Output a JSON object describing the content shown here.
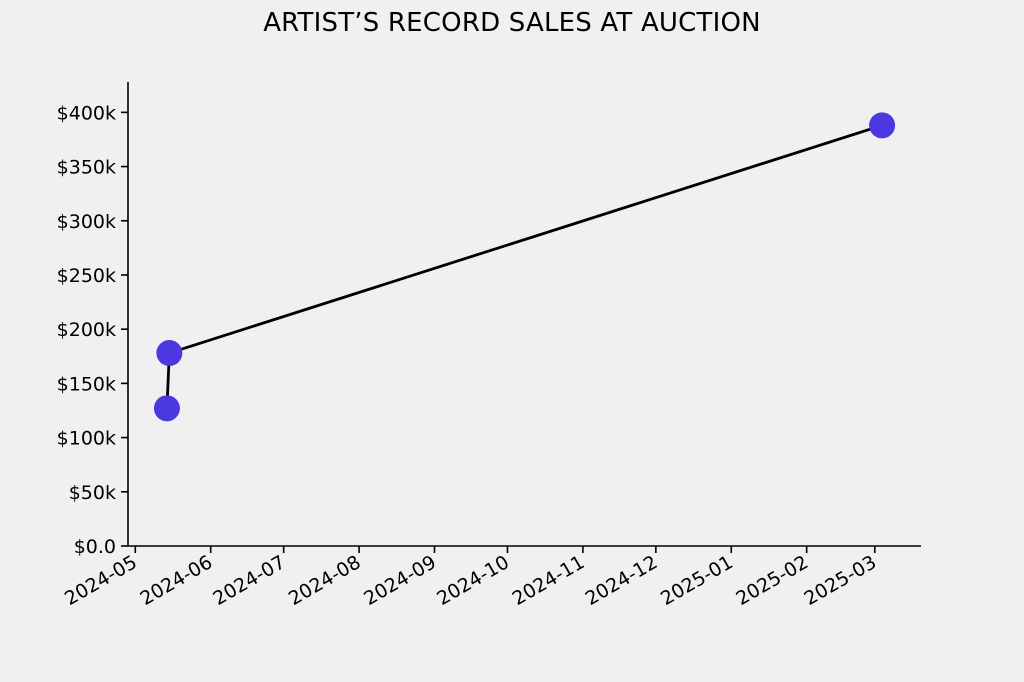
{
  "chart_data": {
    "type": "line",
    "title": "ARTIST’S RECORD SALES AT AUCTION",
    "xlabel": "",
    "ylabel": "",
    "x_axis": {
      "type": "date",
      "min": "2024-04-28",
      "max": "2025-03-20",
      "ticks": [
        "2024-05",
        "2024-06",
        "2024-07",
        "2024-08",
        "2024-09",
        "2024-10",
        "2024-11",
        "2024-12",
        "2025-01",
        "2025-02",
        "2025-03"
      ]
    },
    "y_axis": {
      "min": 0,
      "max": 428000,
      "ticks": [
        {
          "value": 0,
          "label": "$0.0"
        },
        {
          "value": 50000,
          "label": "$50k"
        },
        {
          "value": 100000,
          "label": "$100k"
        },
        {
          "value": 150000,
          "label": "$150k"
        },
        {
          "value": 200000,
          "label": "$200k"
        },
        {
          "value": 250000,
          "label": "$250k"
        },
        {
          "value": 300000,
          "label": "$300k"
        },
        {
          "value": 350000,
          "label": "$350k"
        },
        {
          "value": 400000,
          "label": "$400k"
        }
      ]
    },
    "grid": false,
    "legend": "none",
    "series": [
      {
        "points": [
          {
            "x": "2024-05-14",
            "y": 127000
          },
          {
            "x": "2024-05-15",
            "y": 178000
          },
          {
            "x": "2025-03-04",
            "y": 388000
          }
        ],
        "line_color": "#000000",
        "marker_color": "#4b38e0"
      }
    ]
  }
}
